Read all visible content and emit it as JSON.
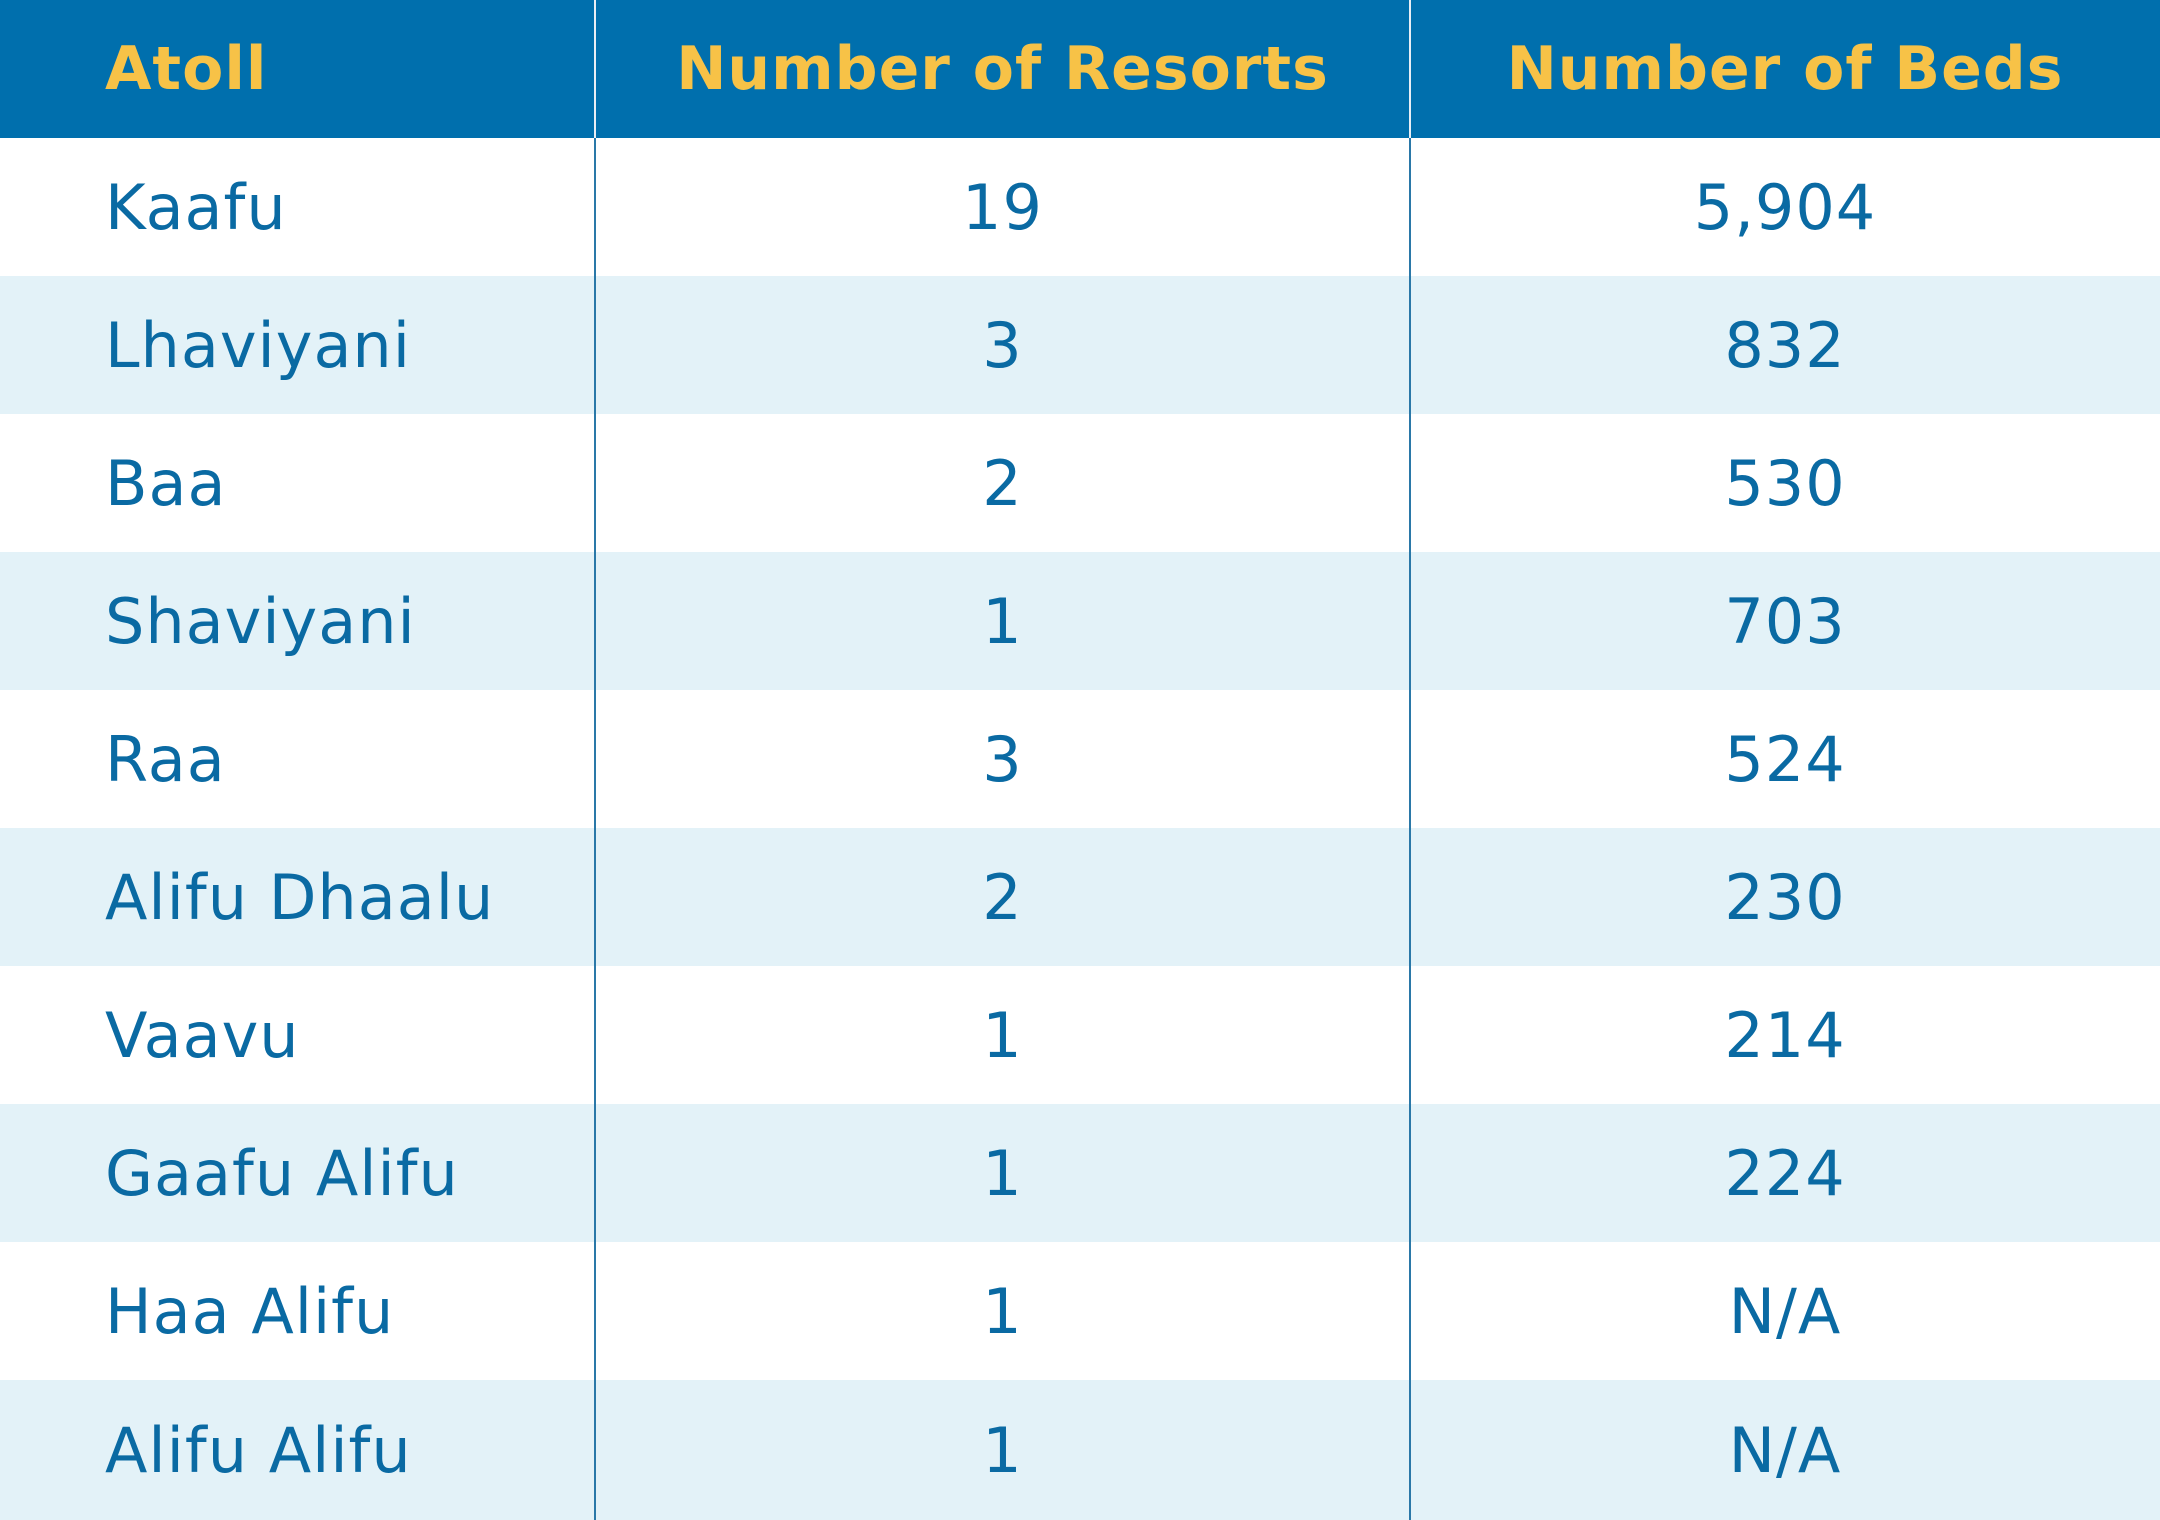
{
  "chart_data": {
    "type": "table",
    "columns": [
      "Atoll",
      "Number of Resorts",
      "Number of Beds"
    ],
    "rows": [
      {
        "atoll": "Kaafu",
        "resorts": "19",
        "beds": "5,904"
      },
      {
        "atoll": "Lhaviyani",
        "resorts": "3",
        "beds": "832"
      },
      {
        "atoll": "Baa",
        "resorts": "2",
        "beds": "530"
      },
      {
        "atoll": "Shaviyani",
        "resorts": "1",
        "beds": "703"
      },
      {
        "atoll": "Raa",
        "resorts": "3",
        "beds": "524"
      },
      {
        "atoll": "Alifu Dhaalu",
        "resorts": "2",
        "beds": "230"
      },
      {
        "atoll": "Vaavu",
        "resorts": "1",
        "beds": "214"
      },
      {
        "atoll": "Gaafu Alifu",
        "resorts": "1",
        "beds": "224"
      },
      {
        "atoll": "Haa Alifu",
        "resorts": "1",
        "beds": "N/A"
      },
      {
        "atoll": "Alifu Alifu",
        "resorts": "1",
        "beds": "N/A"
      }
    ],
    "colors": {
      "header_bg": "#006fad",
      "header_text": "#f7c247",
      "row_alt_bg": "#e3f2f8",
      "body_text": "#0a6aa3"
    }
  }
}
